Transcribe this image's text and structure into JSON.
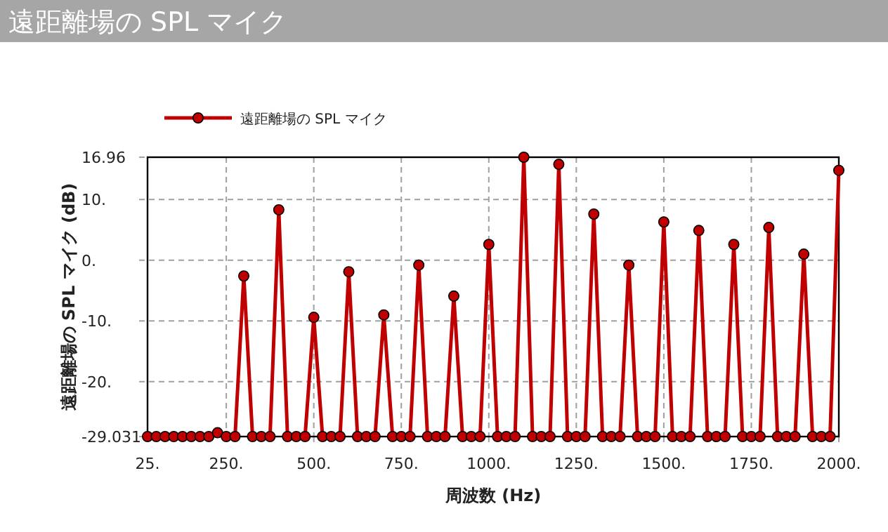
{
  "chart_data": {
    "type": "line",
    "title": "遠距離場の SPL マイク",
    "xlabel": "周波数 (Hz)",
    "ylabel": "遠距離場の SPL マイク (dB)",
    "x": [
      25,
      50,
      75,
      100,
      125,
      150,
      175,
      200,
      225,
      250,
      275,
      300,
      325,
      350,
      375,
      400,
      425,
      450,
      475,
      500,
      525,
      550,
      575,
      600,
      625,
      650,
      675,
      700,
      725,
      750,
      775,
      800,
      825,
      850,
      875,
      900,
      925,
      950,
      975,
      1000,
      1025,
      1050,
      1075,
      1100,
      1125,
      1150,
      1175,
      1200,
      1225,
      1250,
      1275,
      1300,
      1325,
      1350,
      1375,
      1400,
      1425,
      1450,
      1475,
      1500,
      1525,
      1550,
      1575,
      1600,
      1625,
      1650,
      1675,
      1700,
      1725,
      1750,
      1775,
      1800,
      1825,
      1850,
      1875,
      1900,
      1925,
      1950,
      1975,
      2000
    ],
    "series": [
      {
        "name": "遠距離場の SPL マイク",
        "color": "#c00000",
        "values": [
          -29.031,
          -29.031,
          -29.031,
          -29.031,
          -29.031,
          -29.031,
          -29.031,
          -29.031,
          -28.4,
          -29.031,
          -29.031,
          -2.6,
          -29.031,
          -29.031,
          -29.031,
          8.3,
          -29.031,
          -29.031,
          -29.031,
          -9.4,
          -29.031,
          -29.031,
          -29.031,
          -1.9,
          -29.031,
          -29.031,
          -29.031,
          -9.0,
          -29.031,
          -29.031,
          -29.031,
          -0.8,
          -29.031,
          -29.031,
          -29.031,
          -5.9,
          -29.031,
          -29.031,
          -29.031,
          2.6,
          -29.031,
          -29.031,
          -29.031,
          16.96,
          -29.031,
          -29.031,
          -29.031,
          15.8,
          -29.031,
          -29.031,
          -29.031,
          7.6,
          -29.031,
          -29.031,
          -29.031,
          -0.8,
          -29.031,
          -29.031,
          -29.031,
          6.3,
          -29.031,
          -29.031,
          -29.031,
          4.9,
          -29.031,
          -29.031,
          -29.031,
          2.6,
          -29.031,
          -29.031,
          -29.031,
          5.4,
          -29.031,
          -29.031,
          -29.031,
          1.0,
          -29.031,
          -29.031,
          -29.031,
          14.8
        ]
      }
    ],
    "xlim": [
      25,
      2000
    ],
    "xticks": [
      {
        "value": 25,
        "label": "25."
      },
      {
        "value": 250,
        "label": "250."
      },
      {
        "value": 500,
        "label": "500."
      },
      {
        "value": 750,
        "label": "750."
      },
      {
        "value": 1000,
        "label": "1000."
      },
      {
        "value": 1250,
        "label": "1250."
      },
      {
        "value": 1500,
        "label": "1500."
      },
      {
        "value": 1750,
        "label": "1750."
      },
      {
        "value": 2000,
        "label": "2000."
      }
    ],
    "ylim": [
      -29.031,
      16.96
    ],
    "yticks": [
      {
        "value": -29.031,
        "label": "-29.031"
      },
      {
        "value": -20,
        "label": "-20."
      },
      {
        "value": -10,
        "label": "-10."
      },
      {
        "value": 0,
        "label": "0."
      },
      {
        "value": 10,
        "label": "10."
      },
      {
        "value": 16.96,
        "label": "16.96"
      }
    ],
    "grid": true,
    "legend": "top left",
    "marker": "circle",
    "line_style": "solid"
  }
}
